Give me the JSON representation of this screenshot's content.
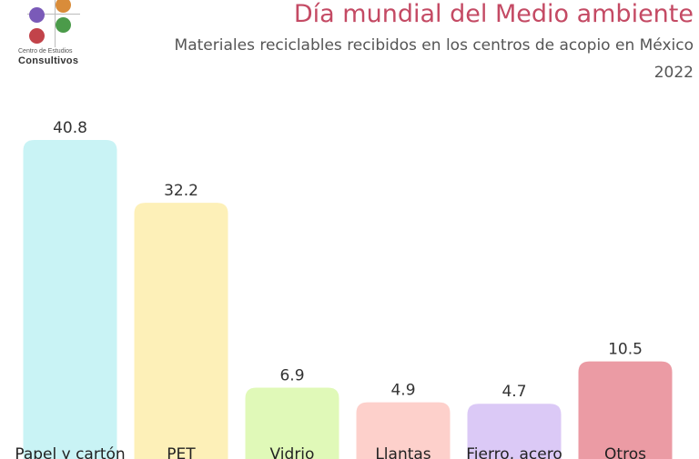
{
  "header": {
    "title": "Día mundial del Medio ambiente",
    "subtitle": "Materiales reciclables recibidos en los centros de acopio en México",
    "year": "2022"
  },
  "logo": {
    "line1": "Centro de Estudios",
    "line2": "Consultivos",
    "dot_colors": [
      "#d98c3a",
      "#7a5ab8",
      "#4b9b4a",
      "#c2434a"
    ]
  },
  "chart_data": {
    "type": "bar",
    "title": "Día mundial del Medio ambiente",
    "subtitle": "Materiales reciclables recibidos en los centros de acopio en México",
    "categories": [
      "Papel y cartón",
      "PET",
      "Vidrio",
      "Llantas",
      "Fierro, acero",
      "Otros"
    ],
    "values": [
      40.8,
      32.2,
      6.9,
      4.9,
      4.7,
      10.5
    ],
    "value_labels": [
      "40.8",
      "32.2",
      "6.9",
      "4.9",
      "4.7",
      "10.5"
    ],
    "colors": [
      "#c9f3f5",
      "#fdf0b8",
      "#e0f9b8",
      "#fdd0cb",
      "#dbc9f6",
      "#eb9ba4"
    ],
    "ylim": [
      0,
      40.8
    ],
    "grid": false,
    "legend": "none"
  }
}
